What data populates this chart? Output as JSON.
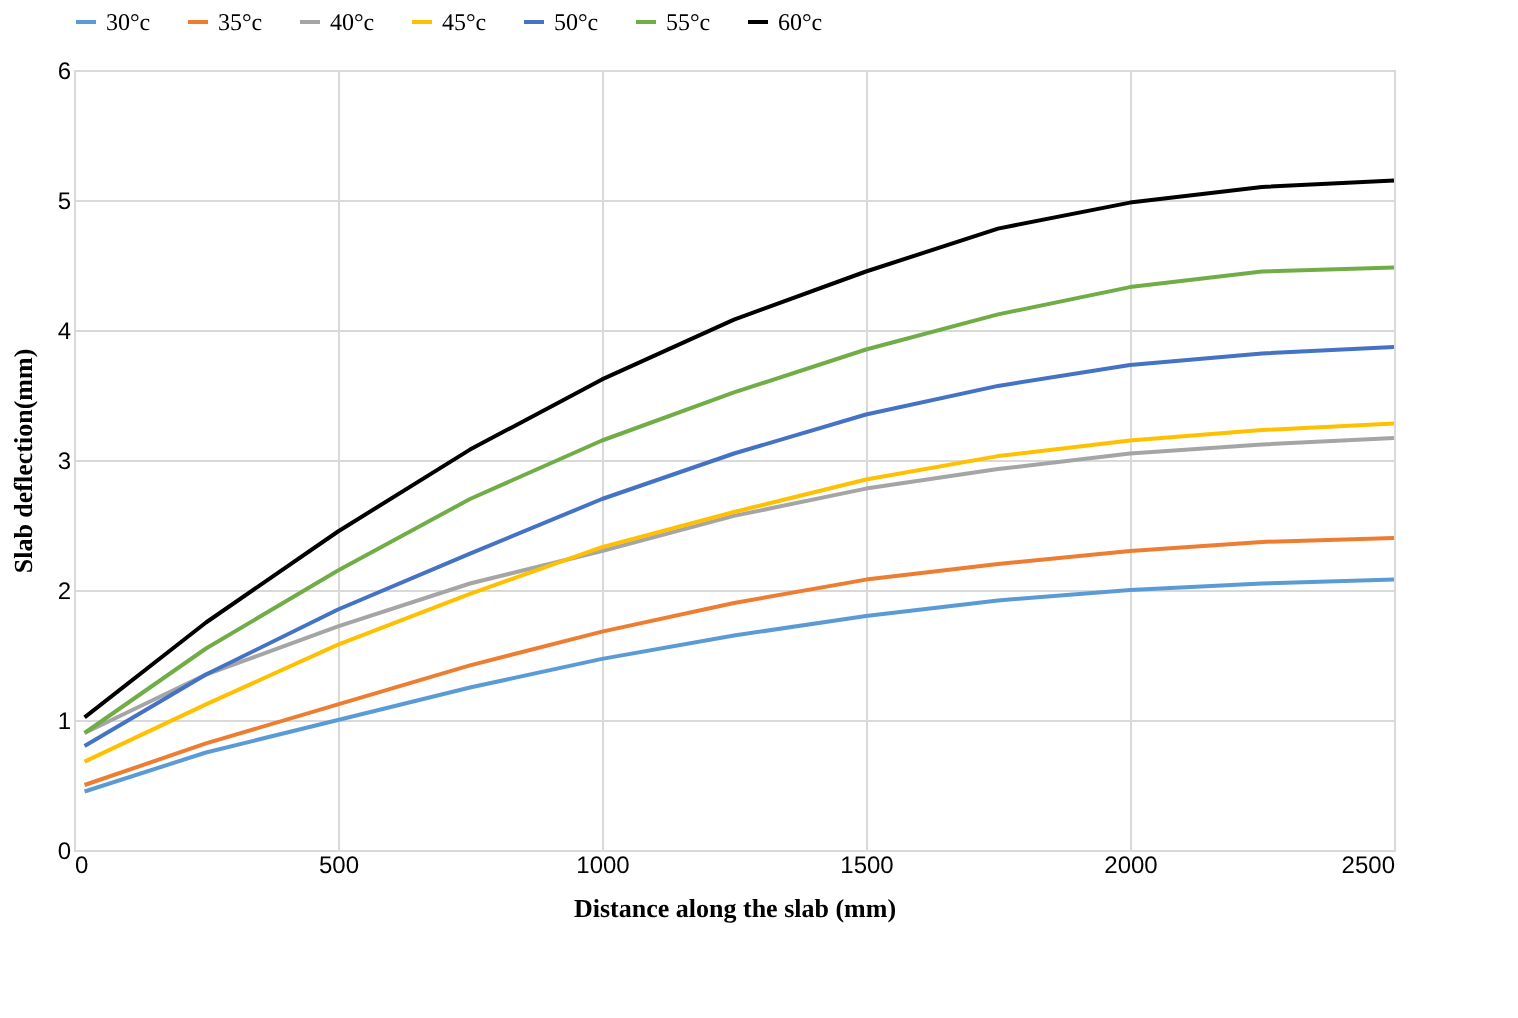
{
  "chart_data": {
    "type": "line",
    "xlabel": "Distance along  the slab (mm)",
    "ylabel": "Slab deflection(mm)",
    "x": [
      20,
      250,
      500,
      750,
      1000,
      1250,
      1500,
      1750,
      2000,
      2250,
      2500
    ],
    "xlim": [
      0,
      2500
    ],
    "xticks": [
      0,
      500,
      1000,
      1500,
      2000,
      2500
    ],
    "ylim": [
      0,
      6
    ],
    "yticks": [
      0,
      1,
      2,
      3,
      4,
      5,
      6
    ],
    "grid": true,
    "legend": "top",
    "marker": "none",
    "line_style": "solid",
    "series": [
      {
        "name": "30°c",
        "color": "#5b9bd5",
        "values": [
          0.45,
          0.75,
          1.0,
          1.25,
          1.47,
          1.65,
          1.8,
          1.92,
          2.0,
          2.05,
          2.08
        ]
      },
      {
        "name": "35°c",
        "color": "#ed7d31",
        "values": [
          0.5,
          0.82,
          1.12,
          1.42,
          1.68,
          1.9,
          2.08,
          2.2,
          2.3,
          2.37,
          2.4
        ]
      },
      {
        "name": "40°c",
        "color": "#a5a5a5",
        "values": [
          0.9,
          1.35,
          1.72,
          2.05,
          2.3,
          2.57,
          2.78,
          2.93,
          3.05,
          3.12,
          3.17
        ]
      },
      {
        "name": "45°c",
        "color": "#ffc000",
        "values": [
          0.68,
          1.12,
          1.58,
          1.97,
          2.33,
          2.6,
          2.85,
          3.03,
          3.15,
          3.23,
          3.28
        ]
      },
      {
        "name": "50°c",
        "color": "#4472c4",
        "values": [
          0.8,
          1.35,
          1.85,
          2.28,
          2.7,
          3.05,
          3.35,
          3.57,
          3.73,
          3.82,
          3.87
        ]
      },
      {
        "name": "55°c",
        "color": "#70ad47",
        "values": [
          0.9,
          1.55,
          2.15,
          2.7,
          3.15,
          3.52,
          3.85,
          4.12,
          4.33,
          4.45,
          4.48
        ]
      },
      {
        "name": "60°c",
        "color": "#000000",
        "values": [
          1.02,
          1.75,
          2.45,
          3.08,
          3.62,
          4.08,
          4.45,
          4.78,
          4.98,
          5.1,
          5.15
        ]
      }
    ]
  }
}
